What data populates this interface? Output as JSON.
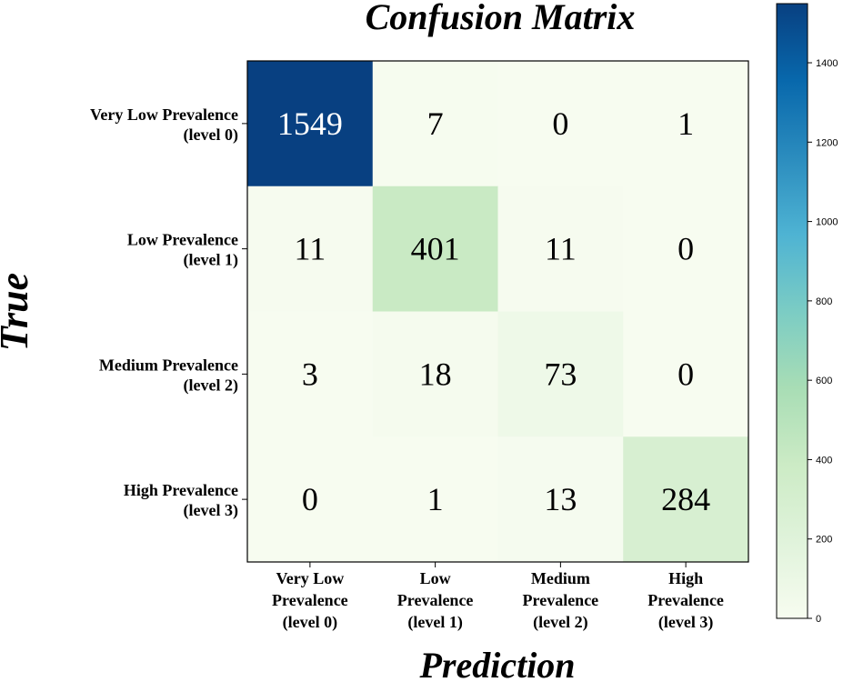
{
  "chart_data": {
    "type": "heatmap",
    "title": "Confusion Matrix",
    "xlabel": "Prediction",
    "ylabel": "True",
    "row_labels": [
      [
        "Very Low Prevalence",
        "(level 0)"
      ],
      [
        "Low Prevalence",
        "(level 1)"
      ],
      [
        "Medium Prevalence",
        "(level 2)"
      ],
      [
        "High Prevalence",
        "(level 3)"
      ]
    ],
    "col_labels": [
      [
        "Very Low",
        "Prevalence",
        "(level 0)"
      ],
      [
        "Low",
        "Prevalence",
        "(level 1)"
      ],
      [
        "Medium",
        "Prevalence",
        "(level 2)"
      ],
      [
        "High",
        "Prevalence",
        "(level 3)"
      ]
    ],
    "values": [
      [
        1549,
        7,
        0,
        1
      ],
      [
        11,
        401,
        11,
        0
      ],
      [
        3,
        18,
        73,
        0
      ],
      [
        0,
        1,
        13,
        284
      ]
    ],
    "colorbar": {
      "min": 0,
      "max": 1549,
      "ticks": [
        0,
        200,
        400,
        600,
        800,
        1000,
        1200,
        1400
      ],
      "colormap": "GnBu",
      "stops": [
        "#f7fcf0",
        "#e0f3db",
        "#ccebc5",
        "#a8ddb5",
        "#7bccc4",
        "#4eb3d3",
        "#2b8cbe",
        "#0868ac",
        "#084081"
      ]
    }
  }
}
